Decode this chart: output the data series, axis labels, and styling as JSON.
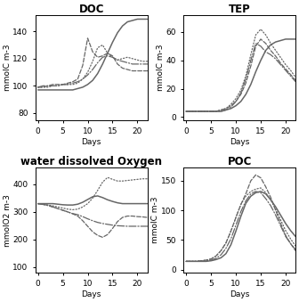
{
  "titles": [
    "DOC",
    "TEP",
    "water dissolved Oxygen",
    "POC"
  ],
  "ylabels": [
    "mmolC m-3",
    "mmolC m-3",
    "mmolO2 m-3",
    "mmolC m-3"
  ],
  "xlabel": "Days",
  "xlim": [
    -0.5,
    22
  ],
  "DOC": {
    "ylim": [
      75,
      152
    ],
    "yticks": [
      80,
      100,
      120,
      140
    ],
    "model_x": [
      0,
      1,
      2,
      3,
      4,
      5,
      6,
      7,
      8,
      9,
      10,
      11,
      12,
      13,
      14,
      15,
      16,
      17,
      18,
      19,
      20,
      21,
      22
    ],
    "model_y": [
      97,
      97,
      97,
      97,
      97,
      97,
      97,
      97,
      98,
      99,
      101,
      104,
      109,
      116,
      124,
      132,
      139,
      144,
      147,
      148,
      149,
      149,
      149
    ],
    "m4_x": [
      0,
      1,
      2,
      3,
      4,
      5,
      6,
      7,
      8,
      9,
      10,
      11,
      12,
      13,
      14,
      15,
      16,
      17,
      18,
      19,
      20,
      21,
      22
    ],
    "m4_y": [
      99,
      99,
      99,
      100,
      100,
      101,
      101,
      101,
      102,
      105,
      110,
      118,
      128,
      130,
      124,
      121,
      119,
      120,
      121,
      120,
      119,
      118,
      118
    ],
    "m5_x": [
      0,
      1,
      2,
      3,
      4,
      5,
      6,
      7,
      8,
      9,
      10,
      11,
      12,
      13,
      14,
      15,
      16,
      17,
      18,
      19,
      20,
      21,
      22
    ],
    "m5_y": [
      99,
      99,
      100,
      101,
      101,
      101,
      102,
      103,
      105,
      115,
      135,
      125,
      121,
      122,
      124,
      122,
      116,
      113,
      112,
      111,
      111,
      111,
      111
    ],
    "m6_x": [
      0,
      1,
      2,
      3,
      4,
      5,
      6,
      7,
      8,
      9,
      10,
      11,
      12,
      13,
      14,
      15,
      16,
      17,
      18,
      19,
      20,
      21,
      22
    ],
    "m6_y": [
      99,
      100,
      100,
      100,
      100,
      101,
      101,
      102,
      103,
      105,
      108,
      112,
      117,
      121,
      122,
      121,
      119,
      118,
      117,
      116,
      116,
      116,
      116
    ]
  },
  "TEP": {
    "ylim": [
      -2,
      72
    ],
    "yticks": [
      0,
      20,
      40,
      60
    ],
    "model_x": [
      0,
      1,
      2,
      3,
      4,
      5,
      6,
      7,
      8,
      9,
      10,
      11,
      12,
      13,
      14,
      15,
      16,
      17,
      18,
      19,
      20,
      21,
      22
    ],
    "model_y": [
      4,
      4,
      4,
      4,
      4,
      4,
      4,
      4,
      5,
      6,
      8,
      11,
      16,
      23,
      32,
      40,
      47,
      51,
      53,
      54,
      55,
      55,
      55
    ],
    "m4_x": [
      0,
      1,
      2,
      3,
      4,
      5,
      6,
      7,
      8,
      9,
      10,
      11,
      12,
      13,
      14,
      15,
      16,
      17,
      18,
      19,
      20,
      21,
      22
    ],
    "m4_y": [
      4,
      4,
      4,
      4,
      4,
      4,
      4,
      5,
      6,
      9,
      13,
      19,
      29,
      44,
      58,
      62,
      58,
      52,
      47,
      42,
      37,
      33,
      28
    ],
    "m5_x": [
      0,
      1,
      2,
      3,
      4,
      5,
      6,
      7,
      8,
      9,
      10,
      11,
      12,
      13,
      14,
      15,
      16,
      17,
      18,
      19,
      20,
      21,
      22
    ],
    "m5_y": [
      4,
      4,
      4,
      4,
      4,
      4,
      4,
      5,
      6,
      8,
      11,
      16,
      24,
      36,
      50,
      55,
      52,
      47,
      43,
      38,
      34,
      30,
      26
    ],
    "m6_x": [
      0,
      1,
      2,
      3,
      4,
      5,
      6,
      7,
      8,
      9,
      10,
      11,
      12,
      13,
      14,
      15,
      16,
      17,
      18,
      19,
      20,
      21,
      22
    ],
    "m6_y": [
      4,
      4,
      4,
      4,
      4,
      4,
      4,
      4,
      5,
      7,
      11,
      17,
      27,
      40,
      52,
      50,
      46,
      44,
      41,
      37,
      33,
      29,
      25
    ]
  },
  "Oxygen": {
    "ylim": [
      80,
      460
    ],
    "yticks": [
      100,
      200,
      300,
      400
    ],
    "model_x": [
      0,
      1,
      2,
      3,
      4,
      5,
      6,
      7,
      8,
      9,
      10,
      11,
      12,
      13,
      14,
      15,
      16,
      17,
      18,
      19,
      20,
      21,
      22
    ],
    "model_y": [
      330,
      330,
      330,
      330,
      328,
      326,
      325,
      325,
      328,
      335,
      345,
      355,
      358,
      352,
      344,
      338,
      333,
      330,
      330,
      330,
      330,
      330,
      330
    ],
    "m4_x": [
      0,
      1,
      2,
      3,
      4,
      5,
      6,
      7,
      8,
      9,
      10,
      11,
      12,
      13,
      14,
      15,
      16,
      17,
      18,
      19,
      20,
      21,
      22
    ],
    "m4_y": [
      330,
      328,
      325,
      322,
      318,
      314,
      310,
      308,
      310,
      318,
      330,
      350,
      378,
      408,
      425,
      418,
      412,
      412,
      414,
      416,
      418,
      420,
      420
    ],
    "m5_x": [
      0,
      1,
      2,
      3,
      4,
      5,
      6,
      7,
      8,
      9,
      10,
      11,
      12,
      13,
      14,
      15,
      16,
      17,
      18,
      19,
      20,
      21,
      22
    ],
    "m5_y": [
      330,
      328,
      324,
      318,
      312,
      306,
      300,
      293,
      285,
      268,
      248,
      228,
      215,
      208,
      218,
      240,
      265,
      280,
      285,
      285,
      283,
      282,
      280
    ],
    "m6_x": [
      0,
      1,
      2,
      3,
      4,
      5,
      6,
      7,
      8,
      9,
      10,
      11,
      12,
      13,
      14,
      15,
      16,
      17,
      18,
      19,
      20,
      21,
      22
    ],
    "m6_y": [
      330,
      327,
      323,
      318,
      312,
      306,
      300,
      294,
      290,
      283,
      275,
      268,
      262,
      258,
      255,
      252,
      250,
      249,
      248,
      248,
      248,
      248,
      248
    ]
  },
  "POC": {
    "ylim": [
      -5,
      172
    ],
    "yticks": [
      0,
      50,
      100,
      150
    ],
    "model_x": [
      0,
      1,
      2,
      3,
      4,
      5,
      6,
      7,
      8,
      9,
      10,
      11,
      12,
      13,
      14,
      15,
      16,
      17,
      18,
      19,
      20,
      21,
      22
    ],
    "model_y": [
      14,
      14,
      14,
      14,
      14,
      15,
      17,
      20,
      27,
      42,
      65,
      90,
      112,
      124,
      130,
      132,
      128,
      118,
      106,
      92,
      78,
      66,
      56
    ],
    "m4_x": [
      0,
      1,
      2,
      3,
      4,
      5,
      6,
      7,
      8,
      9,
      10,
      11,
      12,
      13,
      14,
      15,
      16,
      17,
      18,
      19,
      20,
      21,
      22
    ],
    "m4_y": [
      14,
      14,
      14,
      15,
      16,
      18,
      23,
      32,
      45,
      65,
      88,
      110,
      124,
      132,
      136,
      138,
      130,
      118,
      102,
      84,
      66,
      52,
      40
    ],
    "m5_x": [
      0,
      1,
      2,
      3,
      4,
      5,
      6,
      7,
      8,
      9,
      10,
      11,
      12,
      13,
      14,
      15,
      16,
      17,
      18,
      19,
      20,
      21,
      22
    ],
    "m5_y": [
      14,
      14,
      14,
      15,
      16,
      18,
      23,
      32,
      45,
      65,
      88,
      110,
      128,
      150,
      160,
      155,
      140,
      122,
      100,
      78,
      58,
      44,
      32
    ],
    "m6_x": [
      0,
      1,
      2,
      3,
      4,
      5,
      6,
      7,
      8,
      9,
      10,
      11,
      12,
      13,
      14,
      15,
      16,
      17,
      18,
      19,
      20,
      21,
      22
    ],
    "m6_y": [
      14,
      14,
      14,
      14,
      15,
      16,
      19,
      25,
      36,
      52,
      75,
      98,
      116,
      128,
      132,
      130,
      120,
      108,
      92,
      74,
      56,
      44,
      34
    ]
  },
  "line_color": "#666666",
  "bg_color": "#ffffff",
  "title_fontsize": 8.5,
  "label_fontsize": 6.5,
  "tick_fontsize": 6.5
}
